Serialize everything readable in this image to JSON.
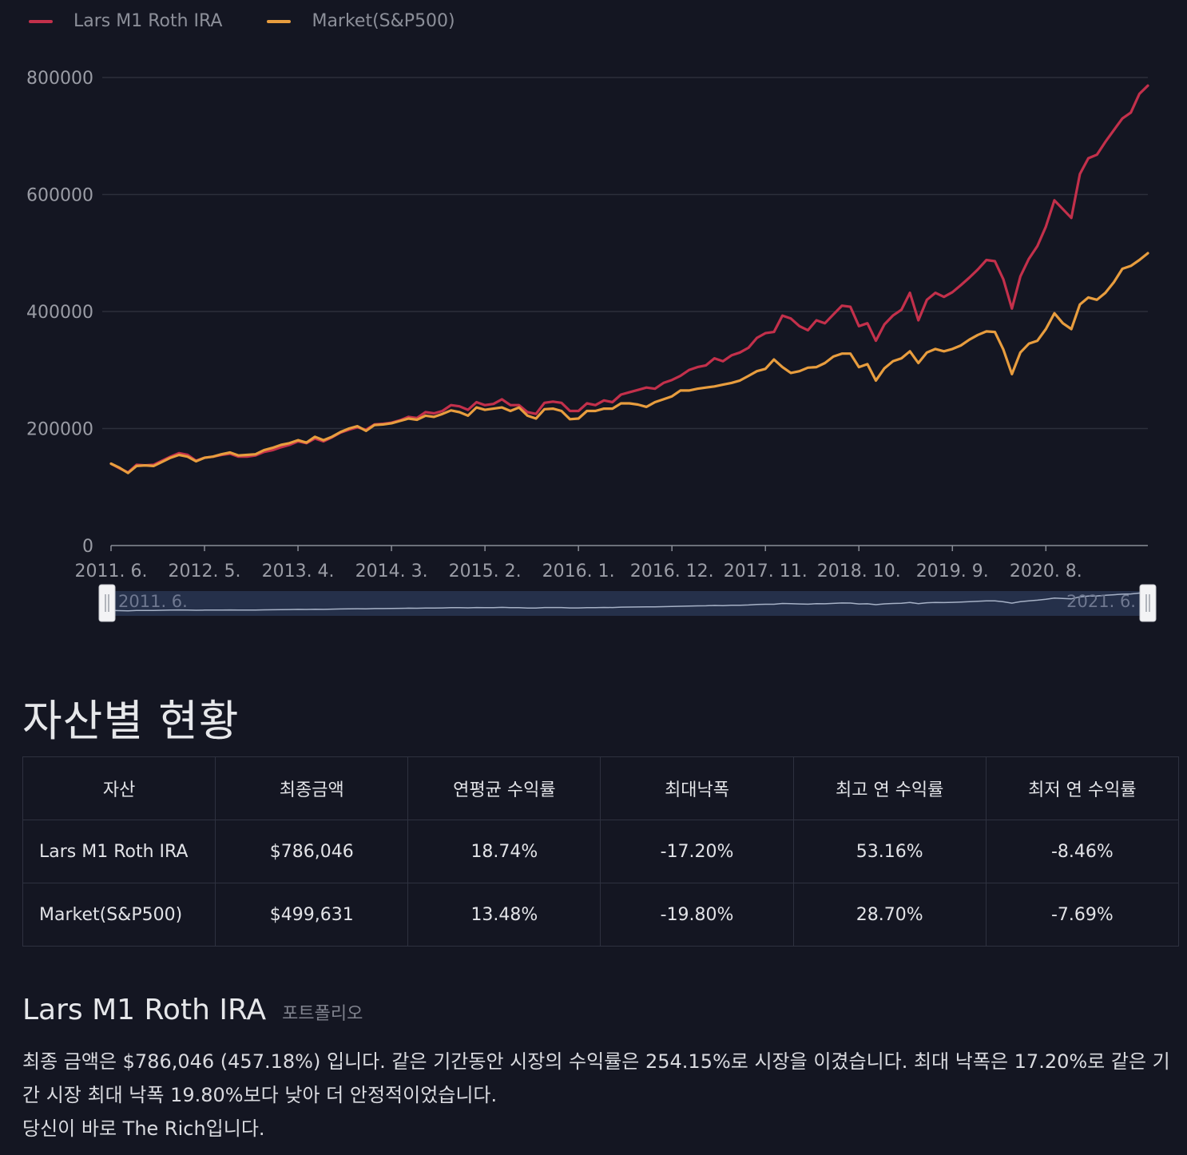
{
  "legend": [
    {
      "label": "Lars M1 Roth IRA",
      "color": "#c3304b"
    },
    {
      "label": "Market(S&P500)",
      "color": "#e89d3e"
    }
  ],
  "chart_data": {
    "type": "line",
    "y_ticks": [
      "0",
      "200000",
      "400000",
      "600000",
      "800000"
    ],
    "ylim": [
      0,
      800000
    ],
    "x_ticks": [
      "2011. 6.",
      "2012. 5.",
      "2013. 4.",
      "2014. 3.",
      "2015. 2.",
      "2016. 1.",
      "2016. 12.",
      "2017. 11.",
      "2018. 10.",
      "2019. 9.",
      "2020. 8."
    ],
    "grid": true,
    "legend_position": "top-left",
    "series": [
      {
        "name": "Lars M1 Roth IRA",
        "color": "#c3304b",
        "values": [
          140000,
          132000,
          125000,
          138000,
          137000,
          138000,
          145000,
          152000,
          158000,
          155000,
          145000,
          150000,
          152000,
          155000,
          157000,
          152000,
          152000,
          154000,
          160000,
          163000,
          168000,
          172000,
          178000,
          175000,
          183000,
          178000,
          185000,
          193000,
          198000,
          202000,
          198000,
          207000,
          208000,
          210000,
          214000,
          220000,
          218000,
          228000,
          226000,
          230000,
          240000,
          238000,
          232000,
          245000,
          240000,
          242000,
          250000,
          240000,
          240000,
          228000,
          225000,
          244000,
          246000,
          244000,
          230000,
          230000,
          243000,
          240000,
          248000,
          245000,
          258000,
          262000,
          266000,
          270000,
          268000,
          278000,
          283000,
          290000,
          300000,
          305000,
          308000,
          320000,
          315000,
          325000,
          330000,
          338000,
          355000,
          363000,
          365000,
          393000,
          388000,
          375000,
          368000,
          385000,
          380000,
          395000,
          410000,
          408000,
          375000,
          380000,
          350000,
          378000,
          393000,
          403000,
          432000,
          385000,
          420000,
          432000,
          425000,
          433000,
          445000,
          458000,
          472000,
          488000,
          486000,
          455000,
          405000,
          460000,
          490000,
          512000,
          545000,
          590000,
          575000,
          560000,
          635000,
          662000,
          668000,
          690000,
          710000,
          730000,
          740000,
          772000,
          786046
        ]
      },
      {
        "name": "Market(S&P500)",
        "color": "#e89d3e",
        "values": [
          140000,
          133000,
          124000,
          136000,
          137000,
          136000,
          143000,
          150000,
          155000,
          152000,
          144000,
          150000,
          152000,
          156000,
          159000,
          154000,
          155000,
          156000,
          163000,
          167000,
          172000,
          175000,
          180000,
          176000,
          186000,
          180000,
          186000,
          194000,
          200000,
          204000,
          196000,
          206000,
          207000,
          209000,
          213000,
          217000,
          215000,
          222000,
          220000,
          225000,
          231000,
          228000,
          222000,
          236000,
          232000,
          234000,
          236000,
          230000,
          236000,
          222000,
          217000,
          233000,
          234000,
          230000,
          216000,
          217000,
          230000,
          230000,
          234000,
          234000,
          243000,
          243000,
          241000,
          237000,
          245000,
          250000,
          255000,
          265000,
          265000,
          268000,
          270000,
          272000,
          275000,
          278000,
          282000,
          290000,
          298000,
          302000,
          318000,
          305000,
          295000,
          298000,
          304000,
          305000,
          312000,
          323000,
          328000,
          328000,
          305000,
          310000,
          282000,
          303000,
          315000,
          320000,
          332000,
          312000,
          330000,
          336000,
          332000,
          336000,
          342000,
          352000,
          360000,
          366000,
          365000,
          335000,
          293000,
          330000,
          345000,
          350000,
          370000,
          397000,
          380000,
          370000,
          412000,
          424000,
          420000,
          432000,
          450000,
          473000,
          478000,
          488000,
          499631
        ]
      }
    ],
    "range_slider": {
      "start_label": "2011. 6.",
      "end_label": "2021. 6."
    }
  },
  "section_title": "자산별 현황",
  "table": {
    "headers": [
      "자산",
      "최종금액",
      "연평균 수익률",
      "최대낙폭",
      "최고 연 수익률",
      "최저 연 수익률"
    ],
    "rows": [
      [
        "Lars M1 Roth IRA",
        "$786,046",
        "18.74%",
        "-17.20%",
        "53.16%",
        "-8.46%"
      ],
      [
        "Market(S&P500)",
        "$499,631",
        "13.48%",
        "-19.80%",
        "28.70%",
        "-7.69%"
      ]
    ]
  },
  "portfolio": {
    "name": "Lars M1 Roth IRA",
    "tag": "포트폴리오",
    "paragraphs": [
      "최종 금액은 $786,046 (457.18%) 입니다. 같은 기간동안 시장의 수익률은 254.15%로 시장을 이겼습니다. 최대 낙폭은 17.20%로 같은 기간 시장 최대 낙폭 19.80%보다 낮아 더 안정적이었습니다.",
      "당신이 바로 The Rich입니다."
    ]
  }
}
